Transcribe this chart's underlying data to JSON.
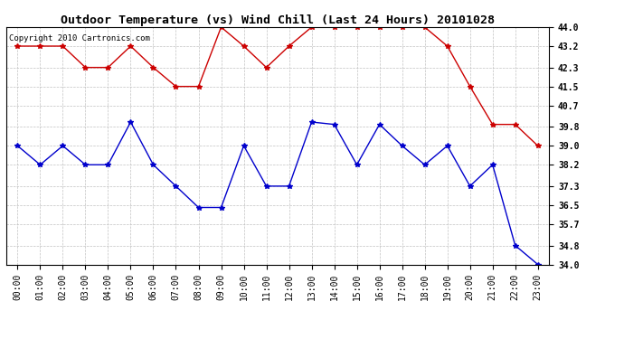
{
  "title": "Outdoor Temperature (vs) Wind Chill (Last 24 Hours) 20101028",
  "copyright_text": "Copyright 2010 Cartronics.com",
  "hours": [
    "00:00",
    "01:00",
    "02:00",
    "03:00",
    "04:00",
    "05:00",
    "06:00",
    "07:00",
    "08:00",
    "09:00",
    "10:00",
    "11:00",
    "12:00",
    "13:00",
    "14:00",
    "15:00",
    "16:00",
    "17:00",
    "18:00",
    "19:00",
    "20:00",
    "21:00",
    "22:00",
    "23:00"
  ],
  "red_data": [
    43.2,
    43.2,
    43.2,
    42.3,
    42.3,
    43.2,
    42.3,
    41.5,
    41.5,
    44.0,
    43.2,
    42.3,
    43.2,
    44.0,
    44.0,
    44.0,
    44.0,
    44.0,
    44.0,
    43.2,
    41.5,
    39.9,
    39.9,
    39.0
  ],
  "blue_data": [
    39.0,
    38.2,
    39.0,
    38.2,
    38.2,
    40.0,
    38.2,
    37.3,
    36.4,
    36.4,
    39.0,
    37.3,
    37.3,
    40.0,
    39.9,
    38.2,
    39.9,
    39.0,
    38.2,
    39.0,
    37.3,
    38.2,
    34.8,
    34.0
  ],
  "ylim_min": 34.0,
  "ylim_max": 44.0,
  "yticks": [
    34.0,
    34.8,
    35.7,
    36.5,
    37.3,
    38.2,
    39.0,
    39.8,
    40.7,
    41.5,
    42.3,
    43.2,
    44.0
  ],
  "red_color": "#cc0000",
  "blue_color": "#0000cc",
  "bg_color": "#ffffff",
  "grid_color": "#bbbbbb",
  "title_fontsize": 9.5,
  "tick_fontsize": 7,
  "copyright_fontsize": 6.5,
  "marker_size": 4,
  "line_width": 1.0
}
